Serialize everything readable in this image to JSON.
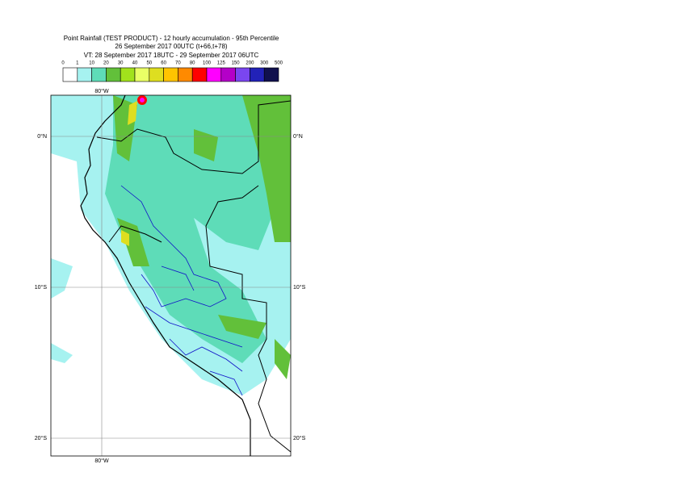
{
  "header": {
    "lines": [
      "Point Rainfall (TEST PRODUCT) - 12 hourly accumulation - 95th Percentile",
      "26 September 2017 00UTC (t+66,t+78)",
      "VT: 28 September 2017 18UTC - 29 September 2017 06UTC"
    ]
  },
  "legend": {
    "thresholds": [
      0,
      1,
      10,
      20,
      30,
      40,
      50,
      60,
      70,
      80,
      100,
      125,
      150,
      200,
      300,
      500
    ],
    "colors": [
      "#ffffff",
      "#a6f2f0",
      "#5edcb8",
      "#62c03a",
      "#a2e21c",
      "#eaff66",
      "#dede20",
      "#ffc400",
      "#ff8a00",
      "#ff0000",
      "#ff00ff",
      "#b400c8",
      "#7a46f0",
      "#2222b8",
      "#10104e"
    ]
  },
  "map": {
    "lat_labels": [
      "0°N",
      "10°S",
      "20°S"
    ],
    "lon_label": "80°W"
  }
}
